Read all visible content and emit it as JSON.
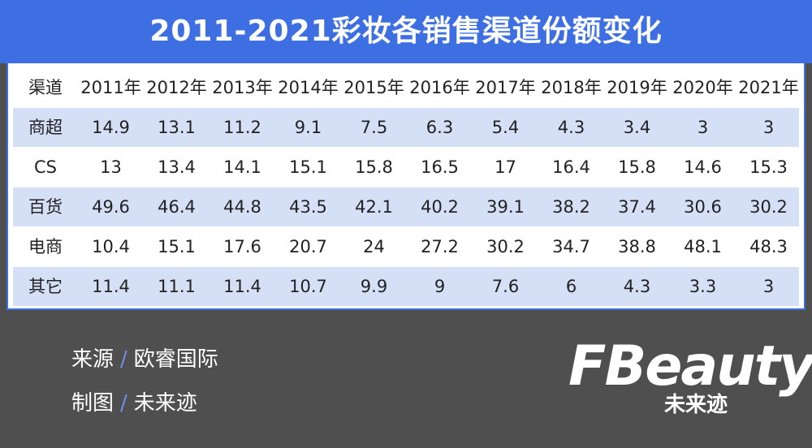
{
  "header": {
    "title": "2011-2021彩妆各销售渠道份额变化"
  },
  "table": {
    "columns": [
      "渠道",
      "2011年",
      "2012年",
      "2013年",
      "2014年",
      "2015年",
      "2016年",
      "2017年",
      "2018年",
      "2019年",
      "2020年",
      "2021年"
    ],
    "rows": [
      [
        "商超",
        14.9,
        13.1,
        11.2,
        9.1,
        7.5,
        6.3,
        5.4,
        4.3,
        3.4,
        3,
        3
      ],
      [
        "CS",
        13,
        13.4,
        14.1,
        15.1,
        15.8,
        16.5,
        17,
        16.4,
        15.8,
        14.6,
        15.3
      ],
      [
        "百货",
        49.6,
        46.4,
        44.8,
        43.5,
        42.1,
        40.2,
        39.1,
        38.2,
        37.4,
        30.6,
        30.2
      ],
      [
        "电商",
        10.4,
        15.1,
        17.6,
        20.7,
        24,
        27.2,
        30.2,
        34.7,
        38.8,
        48.1,
        48.3
      ],
      [
        "其它",
        11.4,
        11.1,
        11.4,
        10.7,
        9.9,
        9,
        7.6,
        6,
        4.3,
        3.3,
        3
      ]
    ]
  },
  "footer": {
    "separator": "/",
    "source_label": "来源",
    "source": "欧睿国际",
    "maker_label": "制图",
    "maker": "未来迹"
  },
  "logo": {
    "text": "FBeauty",
    "subtext": "未来迹"
  }
}
